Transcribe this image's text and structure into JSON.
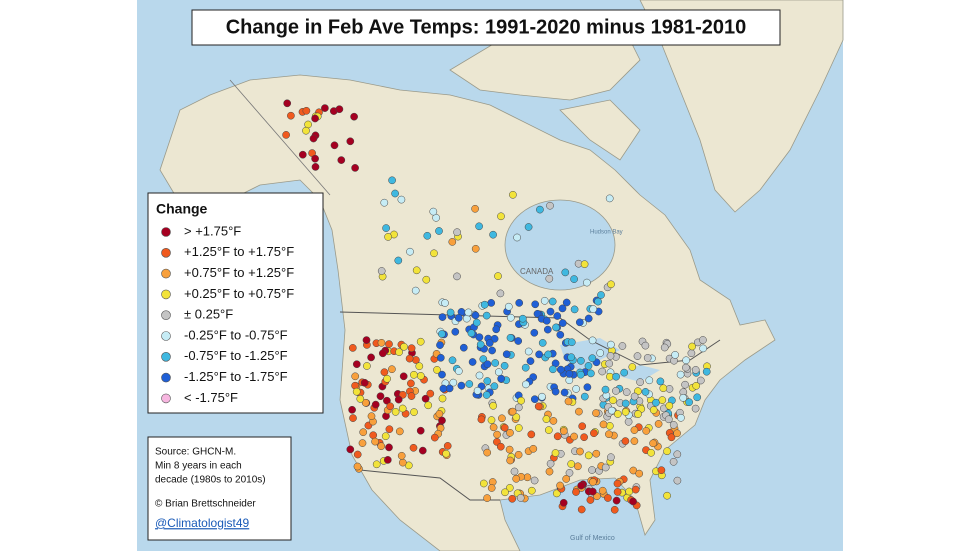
{
  "title": "Change in Feb Ave Temps: 1991-2020 minus 1981-2010",
  "legend": {
    "title": "Change",
    "items": [
      {
        "label": "> +1.75°F",
        "color": "#a50021"
      },
      {
        "label": "+1.25°F to +1.75°F",
        "color": "#f05a1e"
      },
      {
        "label": "+0.75°F to +1.25°F",
        "color": "#f8a03c"
      },
      {
        "label": "+0.25°F to +0.75°F",
        "color": "#f2e33a"
      },
      {
        "label": "± 0.25°F",
        "color": "#c4c4c4"
      },
      {
        "label": "-0.25°F to -0.75°F",
        "color": "#c6ecf5"
      },
      {
        "label": "-0.75°F to -1.25°F",
        "color": "#3fb8e0"
      },
      {
        "label": "-1.25°F to -1.75°F",
        "color": "#1f5fd6"
      },
      {
        "label": "< -1.75°F",
        "color": "#f7b6e0"
      }
    ]
  },
  "source": {
    "lines": [
      "Source: GHCN-M.",
      "Min 8 years in each",
      "decade (1980s to 2010s)"
    ],
    "credit": "© Brian Brettschneider",
    "handle": "@Climatologist49"
  },
  "map_labels": [
    "CANADA",
    "Hudson Bay",
    "Gulf of Mexico"
  ]
}
